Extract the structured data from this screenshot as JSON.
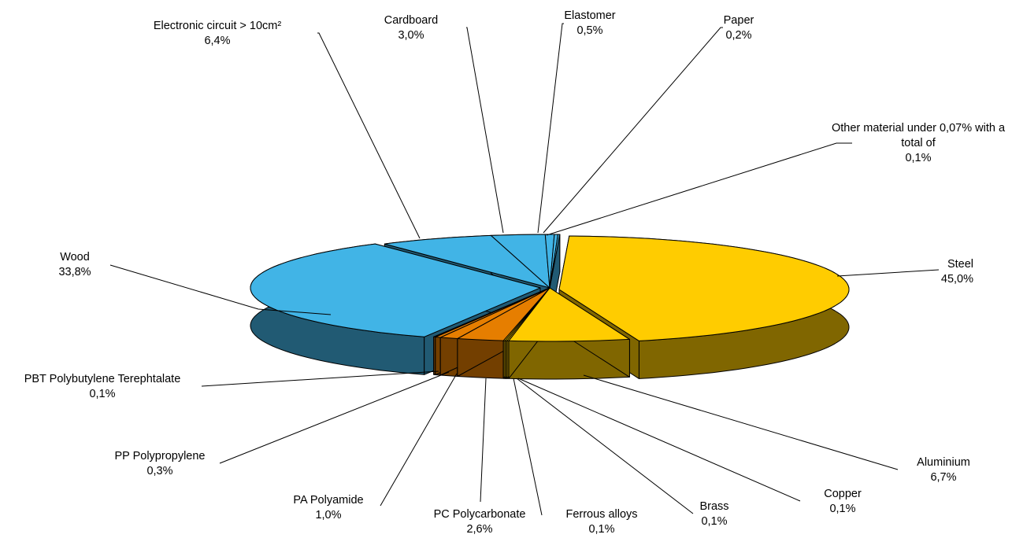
{
  "chart_data": {
    "type": "pie",
    "style": "3d exploded",
    "unit": "%",
    "slices": [
      {
        "name": "Steel",
        "value": 45.0,
        "label": "45,0%",
        "color": "#FFCC00",
        "side_color": "#806600"
      },
      {
        "name": "Aluminium",
        "value": 6.7,
        "label": "6,7%",
        "color": "#FFCC00",
        "side_color": "#806600"
      },
      {
        "name": "Copper",
        "value": 0.1,
        "label": "0,1%",
        "color": "#FFCC00",
        "side_color": "#806600"
      },
      {
        "name": "Brass",
        "value": 0.1,
        "label": "0,1%",
        "color": "#FFCC00",
        "side_color": "#806600"
      },
      {
        "name": "Ferrous alloys",
        "value": 0.1,
        "label": "0,1%",
        "color": "#FFCC00",
        "side_color": "#806600"
      },
      {
        "name": "PC Polycarbonate",
        "value": 2.6,
        "label": "2,6%",
        "color": "#E67E00",
        "side_color": "#733F00"
      },
      {
        "name": "PA Polyamide",
        "value": 1.0,
        "label": "1,0%",
        "color": "#E67E00",
        "side_color": "#733F00"
      },
      {
        "name": "PP Polypropylene",
        "value": 0.3,
        "label": "0,3%",
        "color": "#E67E00",
        "side_color": "#733F00"
      },
      {
        "name": "PBT Polybutylene Terephtalate",
        "value": 0.1,
        "label": "0,1%",
        "color": "#E67E00",
        "side_color": "#733F00"
      },
      {
        "name": "Wood",
        "value": 33.8,
        "label": "33,8%",
        "color": "#41B4E6",
        "side_color": "#215A73"
      },
      {
        "name": "Electronic circuit > 10cm²",
        "value": 6.4,
        "label": "6,4%",
        "color": "#41B4E6",
        "side_color": "#215A73"
      },
      {
        "name": "Cardboard",
        "value": 3.0,
        "label": "3,0%",
        "color": "#41B4E6",
        "side_color": "#215A73"
      },
      {
        "name": "Elastomer",
        "value": 0.5,
        "label": "0,5%",
        "color": "#41B4E6",
        "side_color": "#215A73"
      },
      {
        "name": "Paper",
        "value": 0.2,
        "label": "0,2%",
        "color": "#41B4E6",
        "side_color": "#215A73"
      },
      {
        "name": "Other material under 0,07% with a total of",
        "value": 0.1,
        "label": "0,1%",
        "color": "#41B4E6",
        "side_color": "#215A73"
      }
    ]
  }
}
